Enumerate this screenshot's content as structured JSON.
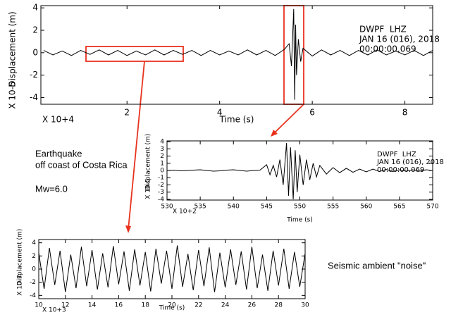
{
  "chart_data": [
    {
      "type": "line",
      "ylabel": "Displacement (m)",
      "yexponent": "X 10-5",
      "xlabel": "Time (s)",
      "xexponent": "X 10+4",
      "info": [
        "DWPF  LHZ",
        "JAN 16 (016), 2018",
        "00:00:00.069"
      ],
      "xlim": [
        0.14,
        8.6
      ],
      "xticks": [
        2,
        4,
        6,
        8
      ],
      "ylim": [
        -4.6,
        4.2
      ],
      "yticks": [
        -4,
        -2,
        0,
        2,
        4
      ],
      "color": "#000000",
      "x": [
        0.2,
        0.4,
        0.6,
        0.8,
        1.0,
        1.2,
        1.4,
        1.6,
        1.8,
        2.0,
        2.2,
        2.4,
        2.6,
        2.8,
        3.0,
        3.2,
        3.4,
        3.6,
        3.8,
        4.0,
        4.2,
        4.4,
        4.6,
        4.8,
        5.0,
        5.2,
        5.4,
        5.5,
        5.55,
        5.6,
        5.62,
        5.64,
        5.66,
        5.7,
        5.75,
        5.8,
        6.0,
        6.2,
        6.4,
        6.6,
        6.8,
        7.0,
        7.2,
        7.4,
        7.6,
        7.8,
        8.0,
        8.2,
        8.4,
        8.6
      ],
      "values": [
        0.2,
        -0.2,
        0.15,
        -0.25,
        0.2,
        -0.15,
        0.25,
        -0.2,
        0.2,
        -0.25,
        0.15,
        -0.2,
        0.25,
        -0.2,
        0.2,
        -0.15,
        0.2,
        -0.25,
        0.2,
        -0.2,
        0.15,
        -0.2,
        0.25,
        -0.2,
        0.2,
        -0.25,
        0.3,
        0.8,
        -1.2,
        3.9,
        -4.2,
        2.5,
        -2.0,
        1.2,
        -0.8,
        0.4,
        -0.3,
        0.25,
        -0.2,
        0.2,
        -0.25,
        0.2,
        -0.2,
        0.25,
        -0.2,
        0.15,
        -0.2,
        0.2,
        -0.25,
        0.2
      ]
    },
    {
      "type": "line",
      "ylabel": "Displacement (m)",
      "yexponent": "X 10-5",
      "xlabel": "Time (s)",
      "xexponent": "X 10+2",
      "info": [
        "DWPF  LHZ",
        "JAN 16 (016), 2018",
        "00:00:00.069"
      ],
      "xlim": [
        530,
        570
      ],
      "xticks": [
        530,
        535,
        540,
        545,
        550,
        555,
        560,
        565,
        570
      ],
      "ylim": [
        -4.1,
        4.1
      ],
      "yticks": [
        -4,
        -3,
        -2,
        -1,
        0,
        1,
        2,
        3,
        4
      ],
      "color": "#000000",
      "x": [
        530,
        531,
        532,
        533,
        534,
        535,
        536,
        537,
        538,
        539,
        540,
        541,
        542,
        543,
        544,
        545,
        545.5,
        546,
        546.5,
        547,
        547.5,
        548,
        548.3,
        548.6,
        549,
        549.3,
        549.6,
        550,
        550.5,
        551,
        551.5,
        552,
        552.5,
        553,
        554,
        555,
        556,
        557,
        558,
        559,
        560,
        561,
        562,
        563,
        564,
        565,
        566,
        567,
        568,
        569,
        570
      ],
      "values": [
        0,
        0.05,
        -0.05,
        0,
        0.05,
        0.1,
        0,
        -0.1,
        -0.05,
        0.05,
        0.1,
        0,
        -0.1,
        0,
        0.05,
        0.8,
        -0.6,
        0.7,
        -0.9,
        1.5,
        -2.0,
        3.8,
        -3.5,
        3.2,
        -4.0,
        2.8,
        -3.0,
        2.2,
        -2.0,
        1.5,
        -1.3,
        1.0,
        -0.9,
        0.7,
        -0.5,
        0.4,
        -0.3,
        0.3,
        -0.25,
        0.2,
        -0.2,
        0.2,
        -0.15,
        0.15,
        -0.15,
        0.1,
        -0.1,
        0.1,
        -0.1,
        0.1,
        0
      ]
    },
    {
      "type": "line",
      "ylabel": "Displacement (m)",
      "yexponent": "X 10-7",
      "xlabel": "Time (s)",
      "xexponent": "X 10+3",
      "xlim": [
        10,
        30
      ],
      "xticks": [
        10,
        12,
        14,
        16,
        18,
        20,
        22,
        24,
        26,
        28,
        30
      ],
      "ylim": [
        -4.5,
        4.5
      ],
      "yticks": [
        -4,
        -2,
        0,
        2,
        4
      ],
      "color": "#000000",
      "x": [
        10,
        10.4,
        10.8,
        11.2,
        11.6,
        12,
        12.4,
        12.8,
        13.2,
        13.6,
        14,
        14.4,
        14.8,
        15.2,
        15.6,
        16,
        16.4,
        16.8,
        17.2,
        17.6,
        18,
        18.4,
        18.8,
        19.2,
        19.6,
        20,
        20.4,
        20.8,
        21.2,
        21.6,
        22,
        22.4,
        22.8,
        23.2,
        23.6,
        24,
        24.4,
        24.8,
        25.2,
        25.6,
        26,
        26.4,
        26.8,
        27.2,
        27.6,
        28,
        28.4,
        28.8,
        29.2,
        29.6,
        30
      ],
      "values": [
        2.5,
        -3,
        3.2,
        -2.4,
        2.8,
        -3.5,
        2.2,
        -2.9,
        3.4,
        -2.6,
        2.9,
        -3.1,
        2.4,
        -2.8,
        3.5,
        -2.3,
        2.7,
        -3.3,
        3.0,
        -2.5,
        2.6,
        -3.4,
        3.1,
        -2.2,
        2.8,
        -3.0,
        3.6,
        -2.7,
        2.3,
        -3.2,
        2.9,
        -2.6,
        3.3,
        -3.5,
        2.5,
        -2.8,
        3.0,
        -2.4,
        2.7,
        -3.1,
        3.4,
        -2.9,
        2.2,
        -3.3,
        2.8,
        -2.5,
        3.1,
        -3.0,
        2.6,
        -2.7,
        2.4
      ]
    }
  ],
  "annotations": [
    "Earthquake",
    "off coast of Costa Rica",
    "Mw=6.0",
    "Seismic ambient \"noise\""
  ]
}
